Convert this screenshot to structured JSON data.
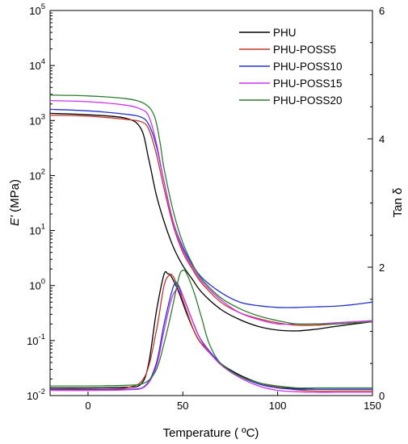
{
  "chart_data": {
    "type": "line",
    "xlabel": "Temperature ( ºC)",
    "ylabel_left": {
      "main": "E'",
      "unit": " (MPa)"
    },
    "ylabel_right": "Tan δ",
    "xlim": [
      -20,
      150
    ],
    "ylim_left": [
      0.01,
      100000
    ],
    "ylim_right": [
      0,
      6
    ],
    "y_left_scale": "log",
    "x_ticks": [
      "0",
      "50",
      "100",
      "150"
    ],
    "x_tick_values": [
      0,
      50,
      100,
      150
    ],
    "y_left_ticks": [
      {
        "value": 100000,
        "base": "10",
        "exp": "5"
      },
      {
        "value": 10000,
        "base": "10",
        "exp": "4"
      },
      {
        "value": 1000,
        "base": "10",
        "exp": "3"
      },
      {
        "value": 100,
        "base": "10",
        "exp": "2"
      },
      {
        "value": 10,
        "base": "10",
        "exp": "1"
      },
      {
        "value": 1,
        "base": "10",
        "exp": "0"
      },
      {
        "value": 0.1,
        "base": "10",
        "exp": "-1"
      },
      {
        "value": 0.01,
        "base": "10",
        "exp": "-2"
      }
    ],
    "y_right_ticks": [
      "0",
      "2",
      "4",
      "6"
    ],
    "y_right_tick_values": [
      0,
      2,
      4,
      6
    ],
    "grid": false,
    "legend_position": "top-right",
    "series": [
      {
        "name": "PHU",
        "color": "#000000",
        "modulus": {
          "x": [
            -20,
            0,
            20,
            28,
            32,
            36,
            40,
            45,
            50,
            55,
            60,
            70,
            80,
            90,
            100,
            110,
            120,
            130,
            140,
            150
          ],
          "y": [
            1350,
            1270,
            1100,
            700,
            200,
            45,
            15,
            5,
            2.3,
            1.3,
            0.75,
            0.37,
            0.24,
            0.18,
            0.155,
            0.15,
            0.16,
            0.18,
            0.2,
            0.22
          ]
        },
        "tan_delta": {
          "x": [
            -20,
            0,
            20,
            28,
            32,
            36,
            40,
            42,
            44,
            48,
            52,
            56,
            60,
            70,
            80,
            90,
            100,
            110,
            120,
            130,
            140,
            150
          ],
          "y": [
            0.12,
            0.12,
            0.13,
            0.18,
            0.5,
            1.3,
            1.88,
            1.9,
            1.85,
            1.6,
            1.28,
            1.0,
            0.8,
            0.5,
            0.32,
            0.2,
            0.13,
            0.11,
            0.1,
            0.1,
            0.1,
            0.1
          ]
        }
      },
      {
        "name": "PHU-POSS5",
        "color": "#c0392b",
        "modulus": {
          "x": [
            -20,
            0,
            20,
            28,
            32,
            36,
            40,
            45,
            50,
            55,
            60,
            70,
            80,
            90,
            100,
            110,
            120,
            130,
            140,
            150
          ],
          "y": [
            1250,
            1200,
            1050,
            950,
            700,
            250,
            60,
            12,
            4,
            2,
            1.1,
            0.5,
            0.32,
            0.25,
            0.21,
            0.19,
            0.19,
            0.2,
            0.21,
            0.22
          ]
        },
        "tan_delta": {
          "x": [
            -20,
            0,
            20,
            30,
            36,
            40,
            43,
            45,
            48,
            52,
            56,
            60,
            70,
            80,
            90,
            100,
            110,
            120,
            130,
            140,
            150
          ],
          "y": [
            0.1,
            0.1,
            0.12,
            0.3,
            1.0,
            1.7,
            1.88,
            1.85,
            1.65,
            1.32,
            1.0,
            0.8,
            0.5,
            0.3,
            0.2,
            0.13,
            0.09,
            0.07,
            0.07,
            0.07,
            0.07
          ]
        }
      },
      {
        "name": "PHU-POSS10",
        "color": "#2233cc",
        "modulus": {
          "x": [
            -20,
            0,
            20,
            28,
            32,
            36,
            40,
            45,
            50,
            55,
            60,
            70,
            80,
            90,
            100,
            110,
            120,
            130,
            140,
            150
          ],
          "y": [
            1600,
            1500,
            1300,
            1150,
            850,
            350,
            80,
            14,
            5,
            2.4,
            1.4,
            0.75,
            0.5,
            0.43,
            0.4,
            0.4,
            0.41,
            0.42,
            0.45,
            0.5
          ]
        },
        "tan_delta": {
          "x": [
            -20,
            0,
            20,
            30,
            36,
            40,
            44,
            46,
            48,
            52,
            56,
            60,
            70,
            80,
            90,
            100,
            110,
            120,
            130,
            140,
            150
          ],
          "y": [
            0.09,
            0.09,
            0.1,
            0.15,
            0.5,
            1.1,
            1.6,
            1.75,
            1.7,
            1.4,
            1.1,
            0.85,
            0.5,
            0.3,
            0.18,
            0.12,
            0.1,
            0.1,
            0.1,
            0.1,
            0.1
          ]
        }
      },
      {
        "name": "PHU-POSS15",
        "color": "#cc33ee",
        "modulus": {
          "x": [
            -20,
            0,
            20,
            28,
            32,
            36,
            40,
            45,
            50,
            55,
            60,
            70,
            80,
            90,
            100,
            110,
            120,
            130,
            140,
            150
          ],
          "y": [
            2300,
            2200,
            1900,
            1600,
            1200,
            400,
            80,
            14,
            4.5,
            2.2,
            1.2,
            0.55,
            0.32,
            0.24,
            0.2,
            0.2,
            0.2,
            0.21,
            0.22,
            0.23
          ]
        },
        "tan_delta": {
          "x": [
            -20,
            0,
            20,
            30,
            36,
            40,
            44,
            47,
            50,
            54,
            58,
            62,
            70,
            80,
            90,
            100,
            110,
            120,
            130,
            140,
            150
          ],
          "y": [
            0.08,
            0.08,
            0.09,
            0.14,
            0.45,
            1.0,
            1.5,
            1.65,
            1.55,
            1.25,
            0.95,
            0.75,
            0.48,
            0.28,
            0.15,
            0.08,
            0.06,
            0.05,
            0.05,
            0.05,
            0.05
          ]
        }
      },
      {
        "name": "PHU-POSS20",
        "color": "#2e7d32",
        "modulus": {
          "x": [
            -20,
            0,
            20,
            30,
            35,
            38,
            40,
            45,
            50,
            55,
            60,
            70,
            80,
            90,
            100,
            110,
            120,
            130,
            140,
            150
          ],
          "y": [
            2900,
            2800,
            2500,
            2000,
            1200,
            400,
            140,
            22,
            6,
            2.5,
            1.3,
            0.6,
            0.38,
            0.28,
            0.23,
            0.2,
            0.2,
            0.2,
            0.21,
            0.22
          ]
        },
        "tan_delta": {
          "x": [
            -20,
            0,
            20,
            30,
            36,
            40,
            44,
            48,
            50,
            52,
            56,
            60,
            64,
            70,
            80,
            90,
            100,
            110,
            120,
            130,
            140,
            150
          ],
          "y": [
            0.15,
            0.15,
            0.16,
            0.2,
            0.4,
            0.8,
            1.3,
            1.85,
            1.95,
            1.9,
            1.6,
            1.2,
            0.8,
            0.5,
            0.3,
            0.2,
            0.15,
            0.12,
            0.12,
            0.12,
            0.12,
            0.12
          ]
        }
      }
    ]
  }
}
